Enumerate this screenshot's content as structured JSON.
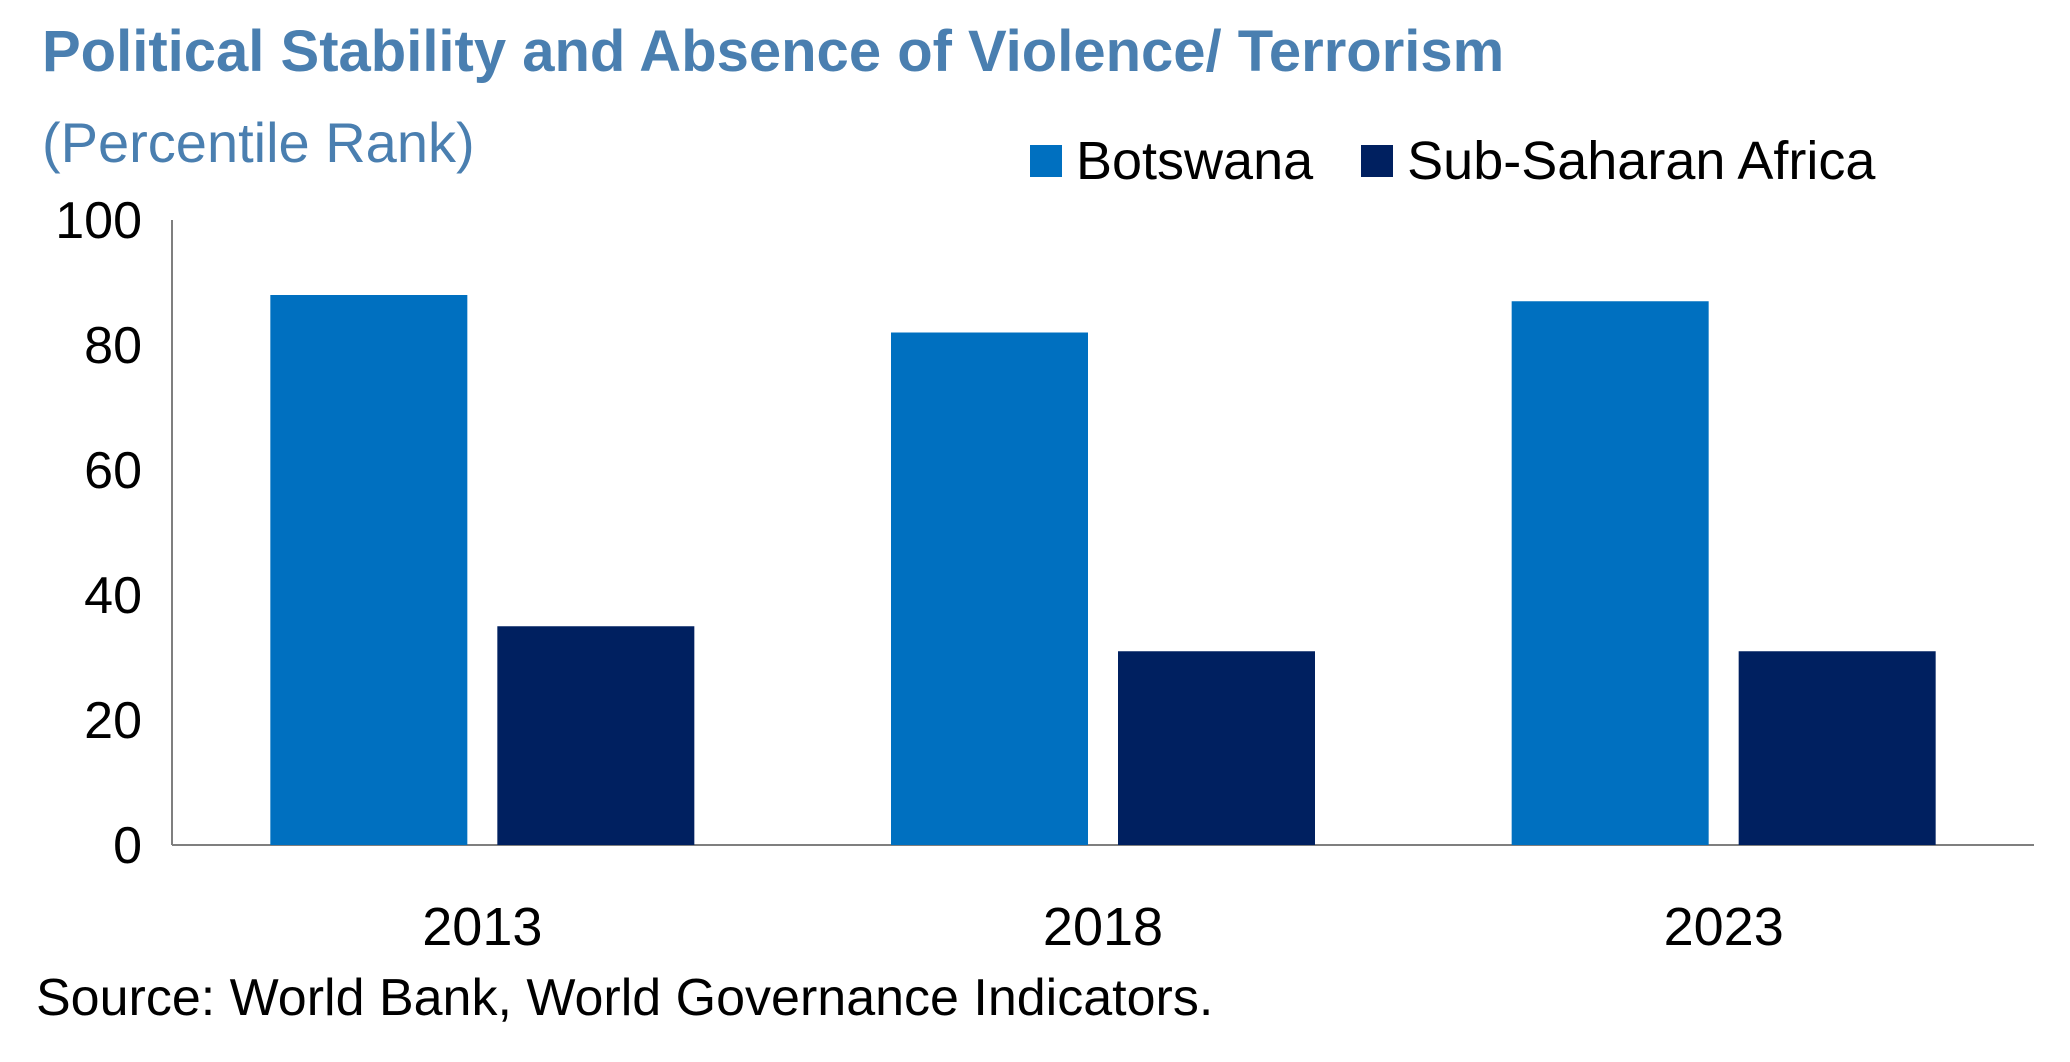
{
  "chart_data": {
    "type": "bar",
    "title": "Political Stability and Absence of Violence/ Terrorism",
    "subtitle": "(Percentile Rank)",
    "categories": [
      "2013",
      "2018",
      "2023"
    ],
    "series": [
      {
        "name": "Botswana",
        "color": "#0070c0",
        "values": [
          88,
          82,
          87
        ]
      },
      {
        "name": "Sub-Saharan Africa",
        "color": "#002060",
        "values": [
          35,
          31,
          31
        ]
      }
    ],
    "ylim": [
      0,
      100
    ],
    "yticks": [
      "0",
      "20",
      "40",
      "60",
      "80",
      "100"
    ],
    "xlabel": "",
    "ylabel": "",
    "legend_position": "top-right",
    "grid": false,
    "source": "Source: World Bank, World Governance Indicators."
  }
}
